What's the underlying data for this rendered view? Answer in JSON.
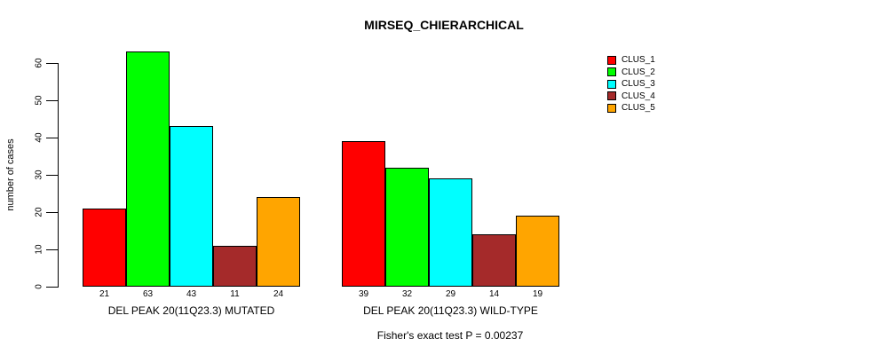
{
  "title": "MIRSEQ_CHIERARCHICAL",
  "ylabel": "number of cases",
  "annotation": "Fisher's exact test P = 0.00237",
  "chart_data": {
    "type": "bar",
    "title": "MIRSEQ_CHIERARCHICAL",
    "xlabel": "",
    "ylabel": "number of cases",
    "ylim": [
      0,
      60
    ],
    "yticks": [
      0,
      10,
      20,
      30,
      40,
      50,
      60
    ],
    "grid": false,
    "bar_value_labels_shown": true,
    "legend_position": "right-outside",
    "categories": [
      "DEL PEAK 20(11Q23.3) MUTATED",
      "DEL PEAK 20(11Q23.3) WILD-TYPE"
    ],
    "series": [
      {
        "name": "CLUS_1",
        "color": "#FF0000",
        "values": [
          21,
          39
        ]
      },
      {
        "name": "CLUS_2",
        "color": "#00FF00",
        "values": [
          63,
          32
        ]
      },
      {
        "name": "CLUS_3",
        "color": "#00FFFF",
        "values": [
          43,
          29
        ]
      },
      {
        "name": "CLUS_4",
        "color": "#A52A2A",
        "values": [
          11,
          14
        ]
      },
      {
        "name": "CLUS_5",
        "color": "#FFA500",
        "values": [
          24,
          19
        ]
      }
    ],
    "annotation": "Fisher's exact test P = 0.00237"
  }
}
